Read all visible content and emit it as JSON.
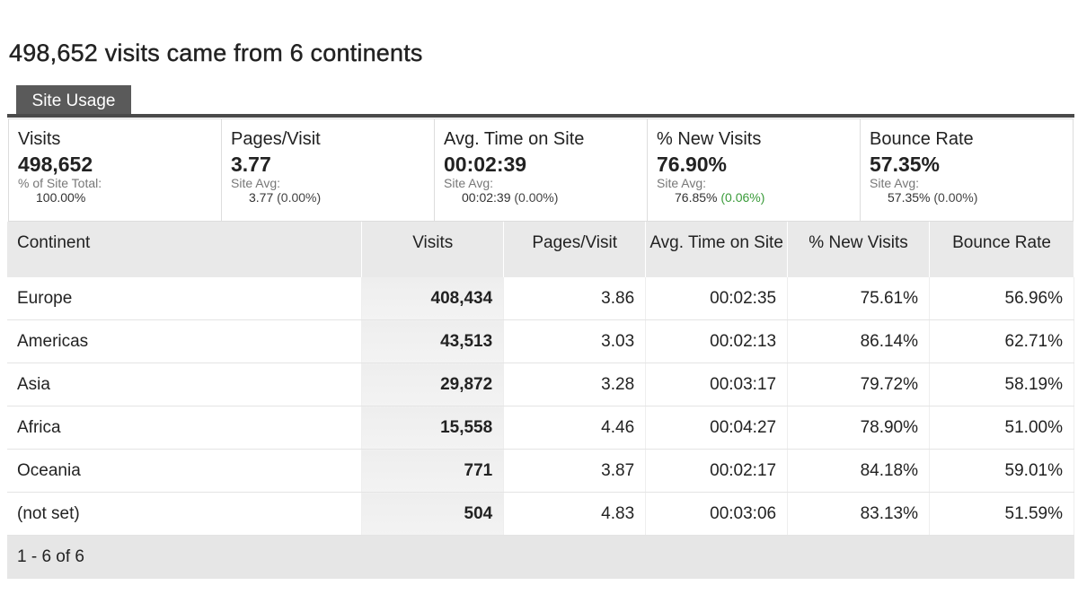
{
  "title": "498,652 visits came from 6 continents",
  "tab": "Site Usage",
  "summary": [
    {
      "label": "Visits",
      "value": "498,652",
      "sub_label": "% of Site Total:",
      "sub_value": "100.00%"
    },
    {
      "label": "Pages/Visit",
      "value": "3.77",
      "sub_label": "Site Avg:",
      "sub_value": "3.77",
      "sub_change": "(0.00%)"
    },
    {
      "label": "Avg. Time on Site",
      "value": "00:02:39",
      "sub_label": "Site Avg:",
      "sub_value": "00:02:39",
      "sub_change": "(0.00%)"
    },
    {
      "label": "% New Visits",
      "value": "76.90%",
      "sub_label": "Site Avg:",
      "sub_value": "76.85%",
      "sub_change": "(0.06%)"
    },
    {
      "label": "Bounce Rate",
      "value": "57.35%",
      "sub_label": "Site Avg:",
      "sub_value": "57.35%",
      "sub_change": "(0.00%)"
    }
  ],
  "table": {
    "headers": [
      "Continent",
      "Visits",
      "Pages/Visit",
      "Avg. Time on Site",
      "% New Visits",
      "Bounce Rate"
    ],
    "rows": [
      [
        "Europe",
        "408,434",
        "3.86",
        "00:02:35",
        "75.61%",
        "56.96%"
      ],
      [
        "Americas",
        "43,513",
        "3.03",
        "00:02:13",
        "86.14%",
        "62.71%"
      ],
      [
        "Asia",
        "29,872",
        "3.28",
        "00:03:17",
        "79.72%",
        "58.19%"
      ],
      [
        "Africa",
        "15,558",
        "4.46",
        "00:04:27",
        "78.90%",
        "51.00%"
      ],
      [
        "Oceania",
        "771",
        "3.87",
        "00:02:17",
        "84.18%",
        "59.01%"
      ],
      [
        "(not set)",
        "504",
        "4.83",
        "00:03:06",
        "83.13%",
        "51.59%"
      ]
    ],
    "pagination": "1 - 6 of 6"
  }
}
